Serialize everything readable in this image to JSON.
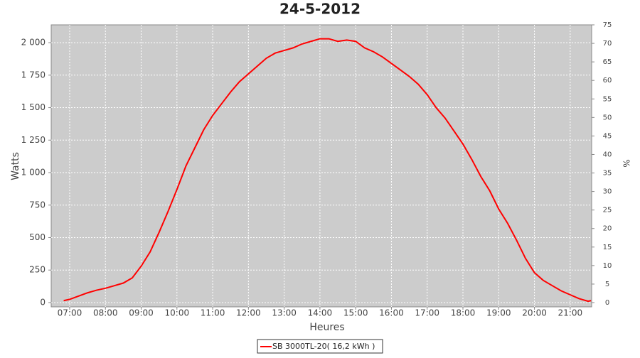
{
  "chart_data": {
    "type": "line",
    "title": "24-5-2012",
    "x_label": "Heures",
    "y_label": "Watts",
    "y2_label": "%",
    "x": [
      "06:50",
      "07:00",
      "07:15",
      "07:30",
      "07:45",
      "08:00",
      "08:15",
      "08:30",
      "08:45",
      "09:00",
      "09:15",
      "09:30",
      "09:45",
      "10:00",
      "10:15",
      "10:30",
      "10:45",
      "11:00",
      "11:15",
      "11:30",
      "11:45",
      "12:00",
      "12:15",
      "12:30",
      "12:45",
      "13:00",
      "13:15",
      "13:30",
      "13:45",
      "14:00",
      "14:15",
      "14:30",
      "14:45",
      "15:00",
      "15:15",
      "15:30",
      "15:45",
      "16:00",
      "16:15",
      "16:30",
      "16:45",
      "17:00",
      "17:15",
      "17:30",
      "17:45",
      "18:00",
      "18:15",
      "18:30",
      "18:45",
      "19:00",
      "19:15",
      "19:30",
      "19:45",
      "20:00",
      "20:15",
      "20:30",
      "20:45",
      "21:00",
      "21:15",
      "21:30",
      "21:35"
    ],
    "series": [
      {
        "name": "SB 3000TL-20( 16,2 kWh )",
        "color": "#ff0000",
        "values": [
          15,
          25,
          50,
          75,
          95,
          110,
          130,
          150,
          190,
          280,
          390,
          540,
          700,
          870,
          1050,
          1190,
          1330,
          1440,
          1530,
          1620,
          1700,
          1760,
          1820,
          1880,
          1920,
          1940,
          1960,
          1990,
          2010,
          2030,
          2030,
          2010,
          2020,
          2010,
          1960,
          1930,
          1890,
          1840,
          1790,
          1740,
          1680,
          1600,
          1500,
          1420,
          1320,
          1220,
          1100,
          970,
          860,
          720,
          610,
          480,
          340,
          230,
          170,
          130,
          90,
          60,
          30,
          10,
          15
        ]
      }
    ],
    "xlim": [
      "06:29",
      "21:36"
    ],
    "xticks": [
      "07:00",
      "08:00",
      "09:00",
      "10:00",
      "11:00",
      "12:00",
      "13:00",
      "14:00",
      "15:00",
      "16:00",
      "17:00",
      "18:00",
      "19:00",
      "20:00",
      "21:00"
    ],
    "ylim": [
      -33,
      2137
    ],
    "yticks": [
      0,
      250,
      500,
      750,
      {
        "value": 1000,
        "label": "1 000"
      },
      {
        "value": 1250,
        "label": "1 250"
      },
      {
        "value": 1500,
        "label": "1 500"
      },
      {
        "value": 1750,
        "label": "1 750"
      },
      {
        "value": 2000,
        "label": "2 000"
      }
    ],
    "y2lim": [
      -1.15,
      75
    ],
    "y2ticks": [
      0,
      5,
      10,
      15,
      20,
      25,
      30,
      35,
      40,
      45,
      50,
      55,
      60,
      65,
      70,
      75
    ],
    "grid": true,
    "legend": "bottom"
  }
}
